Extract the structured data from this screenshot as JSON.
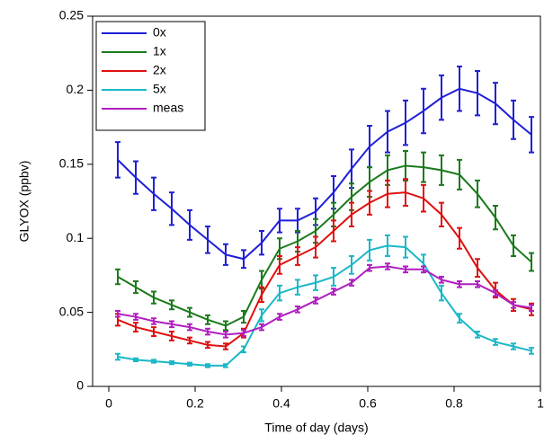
{
  "chart_data": {
    "type": "line",
    "x_label": "Time of day (days)",
    "y_label": "GLYOX (ppbv)",
    "x": [
      0.0208,
      0.0625,
      0.1042,
      0.1458,
      0.1875,
      0.2292,
      0.2708,
      0.3125,
      0.3542,
      0.3958,
      0.4375,
      0.4792,
      0.5208,
      0.5625,
      0.6042,
      0.6458,
      0.6875,
      0.7292,
      0.7708,
      0.8125,
      0.8542,
      0.8958,
      0.9375,
      0.9792
    ],
    "series": [
      {
        "name": "0x",
        "color": "#1f1fd8",
        "values": [
          0.153,
          0.141,
          0.13,
          0.12,
          0.109,
          0.099,
          0.089,
          0.086,
          0.097,
          0.112,
          0.112,
          0.118,
          0.131,
          0.147,
          0.162,
          0.172,
          0.178,
          0.186,
          0.195,
          0.201,
          0.198,
          0.191,
          0.18,
          0.17
        ],
        "errors": [
          0.012,
          0.011,
          0.011,
          0.011,
          0.01,
          0.009,
          0.007,
          0.006,
          0.008,
          0.008,
          0.008,
          0.009,
          0.011,
          0.013,
          0.014,
          0.014,
          0.015,
          0.015,
          0.015,
          0.015,
          0.015,
          0.014,
          0.013,
          0.012
        ]
      },
      {
        "name": "1x",
        "color": "#1a7a1a",
        "values": [
          0.074,
          0.067,
          0.06,
          0.055,
          0.05,
          0.045,
          0.041,
          0.047,
          0.072,
          0.093,
          0.098,
          0.105,
          0.116,
          0.128,
          0.138,
          0.146,
          0.149,
          0.148,
          0.146,
          0.143,
          0.13,
          0.114,
          0.095,
          0.084
        ],
        "errors": [
          0.005,
          0.004,
          0.004,
          0.003,
          0.003,
          0.003,
          0.003,
          0.004,
          0.006,
          0.007,
          0.007,
          0.008,
          0.008,
          0.009,
          0.01,
          0.01,
          0.01,
          0.01,
          0.01,
          0.01,
          0.009,
          0.008,
          0.007,
          0.006
        ]
      },
      {
        "name": "2x",
        "color": "#e01010",
        "values": [
          0.045,
          0.04,
          0.037,
          0.034,
          0.031,
          0.028,
          0.027,
          0.036,
          0.062,
          0.082,
          0.088,
          0.094,
          0.105,
          0.116,
          0.124,
          0.13,
          0.131,
          0.127,
          0.116,
          0.1,
          0.08,
          0.065,
          0.055,
          0.052
        ],
        "errors": [
          0.004,
          0.003,
          0.003,
          0.003,
          0.002,
          0.002,
          0.002,
          0.003,
          0.005,
          0.006,
          0.006,
          0.007,
          0.007,
          0.008,
          0.008,
          0.009,
          0.009,
          0.009,
          0.008,
          0.007,
          0.006,
          0.005,
          0.004,
          0.004
        ]
      },
      {
        "name": "5x",
        "color": "#1ab8c8",
        "values": [
          0.02,
          0.018,
          0.017,
          0.016,
          0.015,
          0.014,
          0.014,
          0.025,
          0.048,
          0.063,
          0.067,
          0.07,
          0.074,
          0.082,
          0.092,
          0.095,
          0.094,
          0.083,
          0.063,
          0.046,
          0.035,
          0.03,
          0.027,
          0.024
        ],
        "errors": [
          0.002,
          0.001,
          0.001,
          0.001,
          0.001,
          0.001,
          0.001,
          0.002,
          0.004,
          0.005,
          0.005,
          0.005,
          0.006,
          0.006,
          0.007,
          0.007,
          0.007,
          0.006,
          0.005,
          0.003,
          0.002,
          0.002,
          0.002,
          0.002
        ]
      },
      {
        "name": "meas",
        "color": "#b01ec0",
        "values": [
          0.049,
          0.047,
          0.044,
          0.042,
          0.04,
          0.037,
          0.035,
          0.036,
          0.04,
          0.047,
          0.052,
          0.058,
          0.064,
          0.07,
          0.08,
          0.081,
          0.079,
          0.079,
          0.072,
          0.069,
          0.069,
          0.063,
          0.055,
          0.053
        ],
        "errors": [
          0.002,
          0.002,
          0.002,
          0.002,
          0.002,
          0.002,
          0.002,
          0.002,
          0.002,
          0.002,
          0.002,
          0.002,
          0.002,
          0.002,
          0.002,
          0.002,
          0.002,
          0.002,
          0.002,
          0.002,
          0.002,
          0.002,
          0.002,
          0.002
        ]
      }
    ],
    "xlim": [
      -0.0375,
      1.0
    ],
    "xticks": [
      0,
      0.2,
      0.4,
      0.6,
      0.8,
      1
    ],
    "ylim": [
      0,
      0.25
    ],
    "yticks": [
      0,
      0.05,
      0.1,
      0.15,
      0.2,
      0.25
    ],
    "legend": "upper-left"
  }
}
